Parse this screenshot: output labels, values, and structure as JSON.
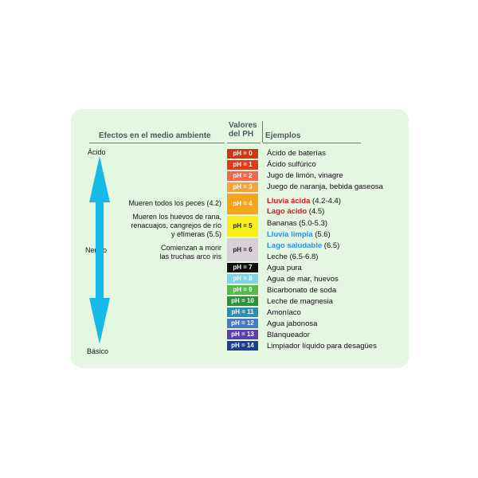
{
  "headers": {
    "effects": "Efectos en el medio ambiente",
    "values_line1": "Valores",
    "values_line2": "del PH",
    "examples": "Ejemplos"
  },
  "scale_labels": {
    "top": "Ácido",
    "middle": "Neutro",
    "bottom": "Básico"
  },
  "effects": {
    "fish": "Mueren todos los peces (4.2)",
    "frog_l1": "Mueren los huevos de rana,",
    "frog_l2": "renacuajos, cangrejos de río",
    "frog_l3": "y efímeras (5.5)",
    "trout_l1": "Comienzan a morir",
    "trout_l2": "las truchas arco iris"
  },
  "ph": [
    {
      "label": "pH = 0",
      "color": "#c93a14"
    },
    {
      "label": "pH = 1",
      "color": "#e23a17"
    },
    {
      "label": "pH = 2",
      "color": "#f2664d"
    },
    {
      "label": "pH = 3",
      "color": "#f5a23a"
    },
    {
      "label": "pH = 4",
      "color": "#f4a51c"
    },
    {
      "label": "pH = 5",
      "color": "#f8ee1a"
    },
    {
      "label": "pH = 6",
      "color": "#d9cfd7"
    },
    {
      "label": "pH = 7",
      "color": "#0e0e0e"
    },
    {
      "label": "pH = 8",
      "color": "#7fd3e5"
    },
    {
      "label": "pH = 9",
      "color": "#58b94a"
    },
    {
      "label": "pH = 10",
      "color": "#2f8f3c"
    },
    {
      "label": "pH = 11",
      "color": "#2c8fb0"
    },
    {
      "label": "pH = 12",
      "color": "#4a79c4"
    },
    {
      "label": "pH = 13",
      "color": "#5b3fa5"
    },
    {
      "label": "pH = 14",
      "color": "#1f3c8f"
    }
  ],
  "examples": {
    "e0": "Ácido de baterías",
    "e1": "Ácido sulfúrico",
    "e2": "Jugo de limón, vinagre",
    "e3": "Juego de naranja, bebida gaseosa",
    "lluvia_acida": "Lluvia ácida",
    "lluvia_acida_range": "(4.2-4.4)",
    "lago_acido": "Lago ácido",
    "lago_acido_value": "(4.5)",
    "bananas": "Bananas (5.0-5.3)",
    "lluvia_limpia": "Lluvia limpia",
    "lluvia_limpia_value": "(5.6)",
    "lago_saludable": "Lago saludable",
    "lago_saludable_value": "(6.5)",
    "leche": "Leche (6.5-6.8)",
    "e7": "Agua pura",
    "e8": "Agua de mar, huevos",
    "e9": "Bicarbonato de soda",
    "e10": "Leche de magnesia",
    "e11": "Amoníaco",
    "e12": "Agua jabonosa",
    "e13": "Blanqueador",
    "e14": "Limpiador líquido para desagües"
  },
  "colors": {
    "background_panel": "#e4f7e1",
    "arrow": "#17b9e8",
    "acid_highlight": "#e3141e",
    "clean_highlight": "#2f8fe0"
  }
}
